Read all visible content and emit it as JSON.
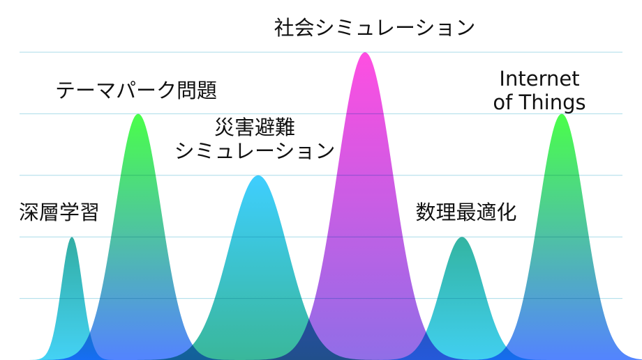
{
  "chart_data": {
    "type": "peaks",
    "categories": [
      "深層学習",
      "テーマパーク問題",
      "災害避難\nシミュレーション",
      "社会シミュレーション",
      "数理最適化",
      "Internet of Things"
    ],
    "values": [
      2,
      4,
      3,
      5,
      2,
      4
    ],
    "colors": [
      [
        "#27a99e",
        "#3ad0f5"
      ],
      [
        "#40ff40",
        "#4a7dff"
      ],
      [
        "#33ccff",
        "#2fb395"
      ],
      [
        "#ff44e0",
        "#8a66e6"
      ],
      [
        "#28b09c",
        "#36cdf0"
      ],
      [
        "#40ff40",
        "#4a7dff"
      ]
    ],
    "ylim": [
      0,
      5
    ],
    "gridlines": [
      1,
      2,
      3,
      4,
      5
    ],
    "grid": true
  }
}
